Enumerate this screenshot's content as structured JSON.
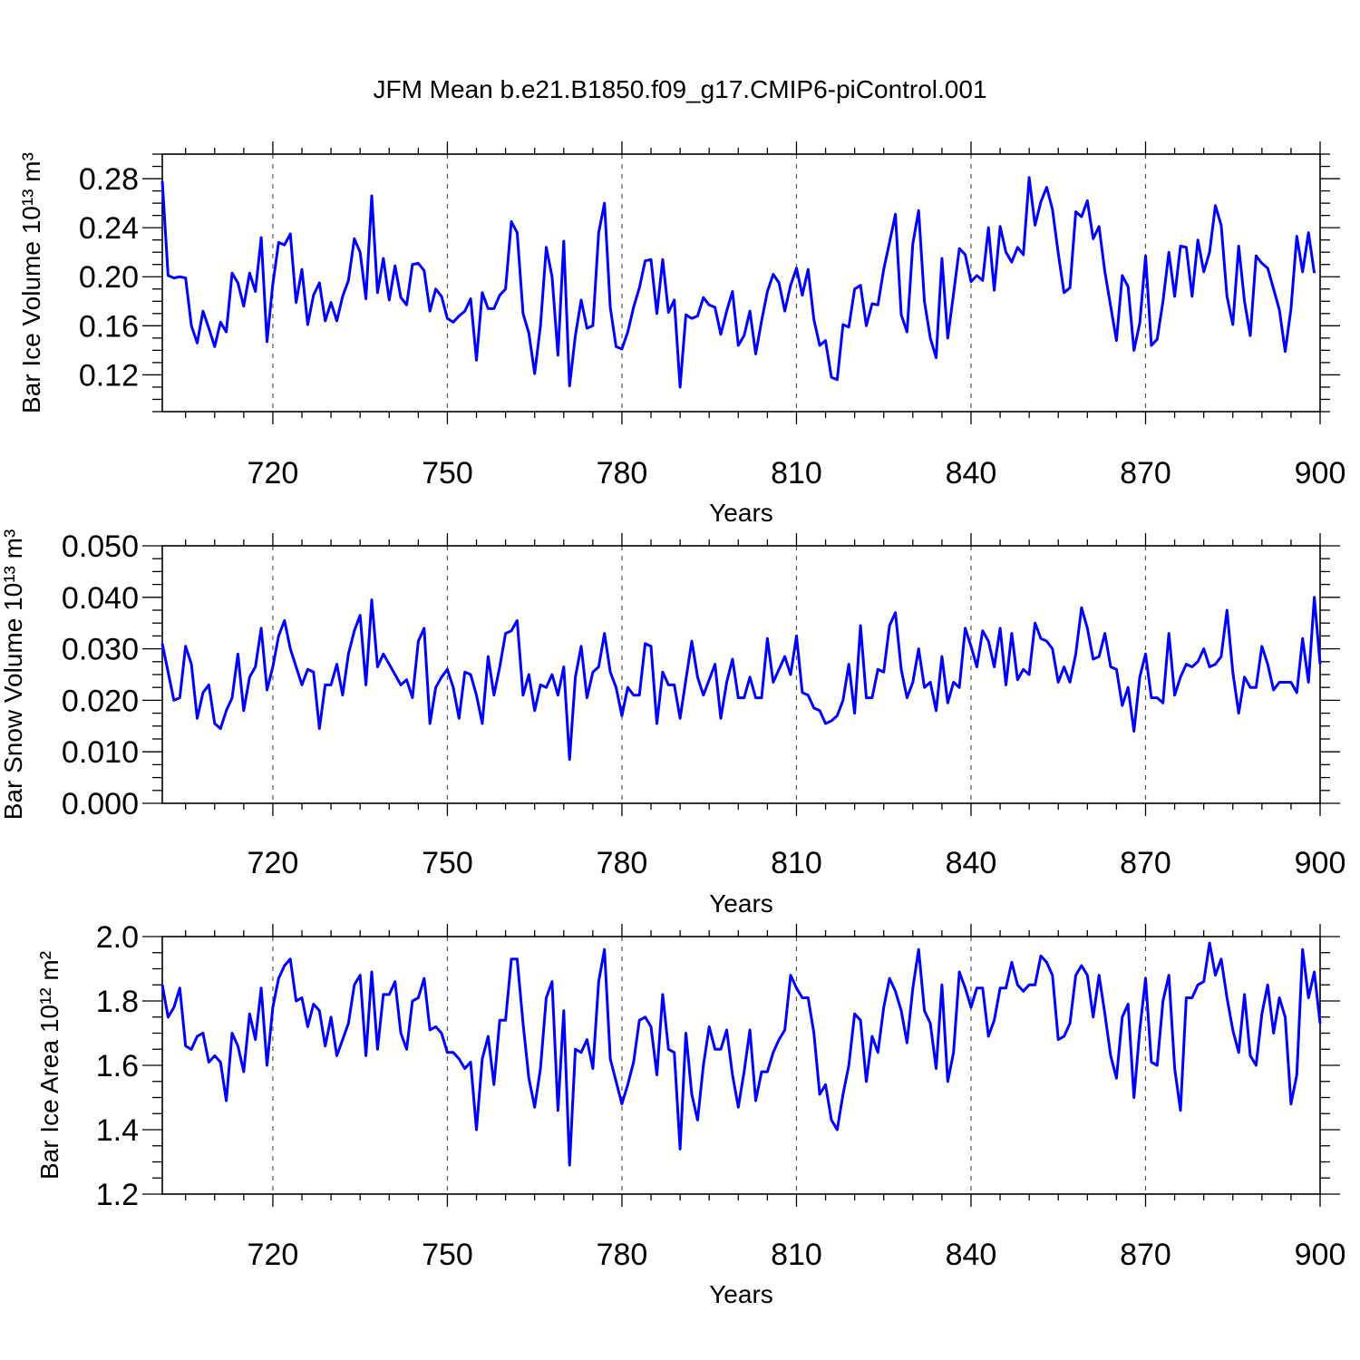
{
  "figure": {
    "title": "JFM Mean b.e21.B1850.f09_g17.CMIP6-piControl.001"
  },
  "colors": {
    "series": "#0000ff",
    "grid": "#555555",
    "axis": "#000000"
  },
  "chart_data": [
    {
      "type": "line",
      "xlabel": "Years",
      "ylabel": "Bar Ice Volume 10¹³ m³",
      "xlim": [
        701,
        900
      ],
      "ylim": [
        0.09,
        0.3
      ],
      "xticks": [
        720,
        750,
        780,
        810,
        840,
        870,
        900
      ],
      "yticks": [
        0.12,
        0.16,
        0.2,
        0.24,
        0.28
      ],
      "ytick_labels": [
        "0.12",
        "0.16",
        "0.20",
        "0.24",
        "0.28"
      ],
      "grid": "dashed vertical lines at major x ticks",
      "color": "#0000ff",
      "x_start": 701,
      "x_step": 1,
      "values": [
        0.278,
        0.201,
        0.199,
        0.2,
        0.199,
        0.16,
        0.146,
        0.172,
        0.158,
        0.143,
        0.163,
        0.155,
        0.203,
        0.195,
        0.176,
        0.203,
        0.188,
        0.232,
        0.147,
        0.194,
        0.228,
        0.226,
        0.235,
        0.179,
        0.206,
        0.161,
        0.185,
        0.195,
        0.164,
        0.179,
        0.164,
        0.184,
        0.197,
        0.231,
        0.22,
        0.182,
        0.266,
        0.187,
        0.215,
        0.181,
        0.209,
        0.183,
        0.177,
        0.21,
        0.211,
        0.205,
        0.172,
        0.19,
        0.184,
        0.166,
        0.163,
        0.168,
        0.172,
        0.182,
        0.132,
        0.187,
        0.174,
        0.174,
        0.185,
        0.19,
        0.245,
        0.236,
        0.17,
        0.154,
        0.121,
        0.16,
        0.224,
        0.2,
        0.136,
        0.229,
        0.111,
        0.152,
        0.181,
        0.158,
        0.16,
        0.236,
        0.26,
        0.175,
        0.143,
        0.141,
        0.155,
        0.175,
        0.191,
        0.213,
        0.214,
        0.17,
        0.214,
        0.171,
        0.181,
        0.11,
        0.169,
        0.166,
        0.168,
        0.183,
        0.177,
        0.175,
        0.153,
        0.172,
        0.188,
        0.144,
        0.152,
        0.172,
        0.137,
        0.164,
        0.188,
        0.202,
        0.195,
        0.172,
        0.193,
        0.207,
        0.185,
        0.206,
        0.165,
        0.144,
        0.148,
        0.118,
        0.116,
        0.161,
        0.159,
        0.19,
        0.193,
        0.16,
        0.178,
        0.177,
        0.206,
        0.228,
        0.251,
        0.169,
        0.155,
        0.227,
        0.254,
        0.18,
        0.15,
        0.134,
        0.215,
        0.15,
        0.186,
        0.223,
        0.218,
        0.196,
        0.201,
        0.197,
        0.24,
        0.189,
        0.241,
        0.22,
        0.212,
        0.224,
        0.218,
        0.281,
        0.242,
        0.261,
        0.273,
        0.255,
        0.219,
        0.187,
        0.191,
        0.253,
        0.249,
        0.262,
        0.231,
        0.241,
        0.204,
        0.176,
        0.148,
        0.201,
        0.192,
        0.14,
        0.162,
        0.217,
        0.144,
        0.149,
        0.18,
        0.22,
        0.184,
        0.225,
        0.224,
        0.184,
        0.23,
        0.204,
        0.22,
        0.258,
        0.242,
        0.184,
        0.161,
        0.225,
        0.18,
        0.152,
        0.217,
        0.211,
        0.207,
        0.19,
        0.173,
        0.139,
        0.174,
        0.233,
        0.204,
        0.236,
        0.203
      ]
    },
    {
      "type": "line",
      "xlabel": "Years",
      "ylabel": "Bar Snow Volume 10¹³ m³",
      "xlim": [
        701,
        900
      ],
      "ylim": [
        0.0,
        0.05
      ],
      "xticks": [
        720,
        750,
        780,
        810,
        840,
        870,
        900
      ],
      "yticks": [
        0.0,
        0.01,
        0.02,
        0.03,
        0.04,
        0.05
      ],
      "ytick_labels": [
        "0.000",
        "0.010",
        "0.020",
        "0.030",
        "0.040",
        "0.050"
      ],
      "grid": "dashed vertical lines at major x ticks",
      "color": "#0000ff",
      "x_start": 701,
      "x_step": 1,
      "values": [
        0.031,
        0.0255,
        0.02,
        0.0205,
        0.0305,
        0.027,
        0.0165,
        0.0215,
        0.023,
        0.0155,
        0.0145,
        0.018,
        0.0205,
        0.029,
        0.018,
        0.0245,
        0.0265,
        0.034,
        0.022,
        0.0265,
        0.0325,
        0.0355,
        0.03,
        0.0265,
        0.023,
        0.026,
        0.0255,
        0.0145,
        0.023,
        0.023,
        0.027,
        0.021,
        0.029,
        0.0335,
        0.0365,
        0.023,
        0.0395,
        0.0265,
        0.029,
        0.027,
        0.025,
        0.023,
        0.024,
        0.0205,
        0.0315,
        0.034,
        0.0155,
        0.0225,
        0.0245,
        0.026,
        0.0225,
        0.0165,
        0.0255,
        0.025,
        0.021,
        0.0155,
        0.0285,
        0.021,
        0.0265,
        0.033,
        0.0335,
        0.0355,
        0.021,
        0.025,
        0.018,
        0.023,
        0.0225,
        0.025,
        0.021,
        0.0265,
        0.0085,
        0.0245,
        0.0305,
        0.0205,
        0.0255,
        0.0265,
        0.033,
        0.0255,
        0.0225,
        0.017,
        0.0225,
        0.021,
        0.021,
        0.031,
        0.0305,
        0.0155,
        0.0255,
        0.023,
        0.023,
        0.0165,
        0.024,
        0.0315,
        0.0245,
        0.021,
        0.024,
        0.027,
        0.0165,
        0.0235,
        0.028,
        0.0205,
        0.0205,
        0.0245,
        0.0205,
        0.0205,
        0.032,
        0.0235,
        0.026,
        0.0285,
        0.025,
        0.0325,
        0.0215,
        0.021,
        0.0185,
        0.018,
        0.0155,
        0.016,
        0.017,
        0.02,
        0.027,
        0.0175,
        0.0345,
        0.0205,
        0.0205,
        0.026,
        0.0255,
        0.0345,
        0.037,
        0.026,
        0.0205,
        0.0235,
        0.03,
        0.0225,
        0.0235,
        0.018,
        0.0285,
        0.0195,
        0.0235,
        0.0225,
        0.034,
        0.0305,
        0.0265,
        0.0335,
        0.0315,
        0.0265,
        0.034,
        0.023,
        0.033,
        0.024,
        0.026,
        0.025,
        0.035,
        0.032,
        0.0315,
        0.03,
        0.0235,
        0.0265,
        0.0235,
        0.029,
        0.038,
        0.034,
        0.028,
        0.0285,
        0.033,
        0.0265,
        0.026,
        0.019,
        0.0225,
        0.014,
        0.0245,
        0.029,
        0.0205,
        0.0205,
        0.0195,
        0.033,
        0.021,
        0.0245,
        0.027,
        0.0265,
        0.0275,
        0.03,
        0.0265,
        0.027,
        0.0285,
        0.0375,
        0.0255,
        0.0175,
        0.0245,
        0.0225,
        0.0225,
        0.0305,
        0.027,
        0.022,
        0.0235,
        0.0235,
        0.0235,
        0.0215,
        0.032,
        0.0235,
        0.04,
        0.027
      ]
    },
    {
      "type": "line",
      "xlabel": "Years",
      "ylabel": "Bar Ice Area 10¹² m²",
      "xlim": [
        701,
        900
      ],
      "ylim": [
        1.2,
        2.0
      ],
      "xticks": [
        720,
        750,
        780,
        810,
        840,
        870,
        900
      ],
      "yticks": [
        1.2,
        1.4,
        1.6,
        1.8,
        2.0
      ],
      "ytick_labels": [
        "1.2",
        "1.4",
        "1.6",
        "1.8",
        "2.0"
      ],
      "grid": "dashed vertical lines at major x ticks",
      "color": "#0000ff",
      "x_start": 701,
      "x_step": 1,
      "values": [
        1.85,
        1.75,
        1.78,
        1.84,
        1.66,
        1.65,
        1.69,
        1.7,
        1.61,
        1.63,
        1.61,
        1.49,
        1.7,
        1.66,
        1.58,
        1.76,
        1.68,
        1.84,
        1.6,
        1.78,
        1.87,
        1.91,
        1.93,
        1.8,
        1.81,
        1.72,
        1.79,
        1.77,
        1.66,
        1.75,
        1.63,
        1.68,
        1.73,
        1.85,
        1.88,
        1.63,
        1.89,
        1.65,
        1.82,
        1.82,
        1.86,
        1.7,
        1.65,
        1.8,
        1.81,
        1.87,
        1.71,
        1.72,
        1.7,
        1.64,
        1.64,
        1.62,
        1.59,
        1.61,
        1.4,
        1.62,
        1.69,
        1.54,
        1.74,
        1.74,
        1.93,
        1.93,
        1.73,
        1.56,
        1.47,
        1.59,
        1.81,
        1.86,
        1.46,
        1.77,
        1.29,
        1.65,
        1.64,
        1.68,
        1.59,
        1.86,
        1.96,
        1.62,
        1.55,
        1.48,
        1.54,
        1.61,
        1.74,
        1.75,
        1.72,
        1.57,
        1.82,
        1.65,
        1.64,
        1.34,
        1.7,
        1.51,
        1.43,
        1.6,
        1.72,
        1.65,
        1.65,
        1.71,
        1.57,
        1.47,
        1.58,
        1.71,
        1.49,
        1.58,
        1.58,
        1.64,
        1.68,
        1.71,
        1.88,
        1.84,
        1.81,
        1.81,
        1.7,
        1.51,
        1.54,
        1.43,
        1.4,
        1.51,
        1.6,
        1.76,
        1.74,
        1.55,
        1.69,
        1.64,
        1.78,
        1.87,
        1.83,
        1.77,
        1.67,
        1.84,
        1.96,
        1.77,
        1.73,
        1.59,
        1.85,
        1.55,
        1.64,
        1.89,
        1.84,
        1.78,
        1.84,
        1.84,
        1.69,
        1.74,
        1.84,
        1.84,
        1.92,
        1.85,
        1.83,
        1.85,
        1.85,
        1.94,
        1.92,
        1.88,
        1.68,
        1.69,
        1.73,
        1.88,
        1.91,
        1.88,
        1.75,
        1.88,
        1.76,
        1.63,
        1.56,
        1.75,
        1.79,
        1.5,
        1.71,
        1.87,
        1.61,
        1.6,
        1.8,
        1.88,
        1.59,
        1.46,
        1.81,
        1.81,
        1.85,
        1.86,
        1.98,
        1.88,
        1.93,
        1.81,
        1.71,
        1.64,
        1.82,
        1.63,
        1.6,
        1.76,
        1.85,
        1.7,
        1.81,
        1.75,
        1.48,
        1.57,
        1.96,
        1.81,
        1.89,
        1.73
      ]
    }
  ]
}
